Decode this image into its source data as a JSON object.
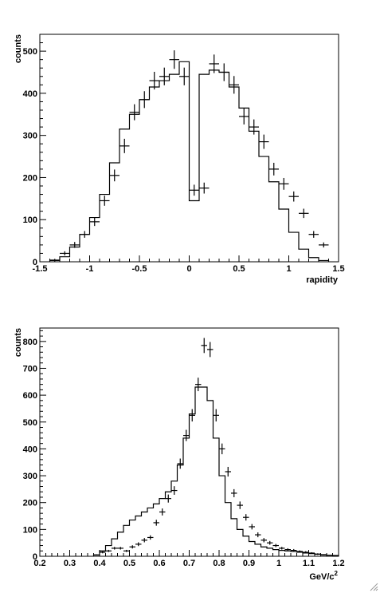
{
  "chart_data": [
    {
      "type": "histogram",
      "title": "",
      "xlabel": "rapidity",
      "ylabel": "counts",
      "xlim": [
        -1.5,
        1.5
      ],
      "ylim": [
        0,
        540
      ],
      "xticks": [
        -1.5,
        -1,
        -0.5,
        0,
        0.5,
        1,
        1.5
      ],
      "xtick_labels": [
        "-1.5",
        "-1",
        "-0.5",
        "0",
        "0.5",
        "1",
        "1.5"
      ],
      "yticks": [
        0,
        100,
        200,
        300,
        400,
        500
      ],
      "ytick_labels": [
        "0",
        "100",
        "200",
        "300",
        "400",
        "500"
      ],
      "bin_width": 0.1,
      "series": [
        {
          "kind": "step",
          "bin_low_edges": [
            -1.4,
            -1.3,
            -1.2,
            -1.1,
            -1.0,
            -0.9,
            -0.8,
            -0.7,
            -0.6,
            -0.5,
            -0.4,
            -0.3,
            -0.2,
            -0.1,
            0.0,
            0.1,
            0.2,
            0.3,
            0.4,
            0.5,
            0.6,
            0.7,
            0.8,
            0.9,
            1.0,
            1.1,
            1.2,
            1.3
          ],
          "values": [
            3,
            12,
            35,
            65,
            105,
            160,
            235,
            315,
            350,
            385,
            415,
            430,
            445,
            475,
            145,
            445,
            455,
            450,
            415,
            365,
            310,
            250,
            190,
            125,
            70,
            30,
            10,
            3
          ]
        },
        {
          "kind": "points_with_errors",
          "x": [
            -1.35,
            -1.25,
            -1.15,
            -1.05,
            -0.95,
            -0.85,
            -0.75,
            -0.65,
            -0.55,
            -0.45,
            -0.35,
            -0.25,
            -0.15,
            -0.05,
            0.05,
            0.15,
            0.25,
            0.35,
            0.45,
            0.55,
            0.65,
            0.75,
            0.85,
            0.95,
            1.05,
            1.15,
            1.25,
            1.35
          ],
          "y": [
            4,
            20,
            40,
            65,
            95,
            145,
            205,
            275,
            355,
            385,
            430,
            440,
            480,
            440,
            170,
            175,
            470,
            450,
            420,
            345,
            320,
            285,
            220,
            185,
            155,
            115,
            65,
            40
          ],
          "x_err": 0.05,
          "y_err": [
            3,
            5,
            7,
            8,
            10,
            12,
            14,
            17,
            19,
            20,
            21,
            21,
            22,
            21,
            13,
            13,
            22,
            21,
            21,
            19,
            18,
            17,
            15,
            14,
            12,
            11,
            8,
            6
          ]
        }
      ]
    },
    {
      "type": "histogram",
      "title": "",
      "xlabel": "GeV/c",
      "xlabel_superscript": "2",
      "ylabel": "counts",
      "xlim": [
        0.2,
        1.2
      ],
      "ylim": [
        0,
        850
      ],
      "xticks": [
        0.2,
        0.3,
        0.4,
        0.5,
        0.6,
        0.7,
        0.8,
        0.9,
        1.0,
        1.1,
        1.2
      ],
      "xtick_labels": [
        "0.2",
        "0.3",
        "0.4",
        "0.5",
        "0.6",
        "0.7",
        "0.8",
        "0.9",
        "1",
        "1.1",
        "1.2"
      ],
      "yticks": [
        0,
        100,
        200,
        300,
        400,
        500,
        600,
        700,
        800
      ],
      "ytick_labels": [
        "0",
        "100",
        "200",
        "300",
        "400",
        "500",
        "600",
        "700",
        "800"
      ],
      "bin_width": 0.02,
      "series": [
        {
          "kind": "step",
          "bin_low_edges": [
            0.38,
            0.4,
            0.42,
            0.44,
            0.46,
            0.48,
            0.5,
            0.52,
            0.54,
            0.56,
            0.58,
            0.6,
            0.62,
            0.64,
            0.66,
            0.68,
            0.7,
            0.72,
            0.74,
            0.76,
            0.78,
            0.8,
            0.82,
            0.84,
            0.86,
            0.88,
            0.9,
            0.92,
            0.94,
            0.96,
            0.98,
            1.0,
            1.02,
            1.04,
            1.06,
            1.08,
            1.1,
            1.12,
            1.14,
            1.16,
            1.18
          ],
          "values": [
            5,
            20,
            40,
            65,
            90,
            115,
            135,
            150,
            165,
            180,
            195,
            215,
            240,
            280,
            340,
            440,
            530,
            630,
            630,
            580,
            440,
            300,
            200,
            140,
            100,
            75,
            55,
            45,
            35,
            30,
            25,
            22,
            20,
            18,
            15,
            12,
            10,
            8,
            6,
            4,
            3
          ]
        },
        {
          "kind": "points_with_errors",
          "x": [
            0.39,
            0.41,
            0.43,
            0.45,
            0.47,
            0.49,
            0.51,
            0.53,
            0.55,
            0.57,
            0.59,
            0.61,
            0.63,
            0.65,
            0.67,
            0.69,
            0.71,
            0.73,
            0.75,
            0.77,
            0.79,
            0.81,
            0.83,
            0.85,
            0.87,
            0.89,
            0.91,
            0.93,
            0.95,
            0.97,
            0.99,
            1.01,
            1.03,
            1.05,
            1.07,
            1.09,
            1.11,
            1.13,
            1.15
          ],
          "y": [
            5,
            15,
            20,
            30,
            30,
            20,
            35,
            45,
            60,
            70,
            125,
            165,
            215,
            245,
            345,
            450,
            525,
            640,
            785,
            770,
            525,
            400,
            315,
            235,
            190,
            145,
            110,
            80,
            60,
            50,
            40,
            30,
            25,
            22,
            18,
            15,
            12,
            8,
            5
          ],
          "x_err": 0.01,
          "y_err": [
            2,
            4,
            4,
            5,
            5,
            4,
            6,
            7,
            8,
            8,
            11,
            13,
            15,
            16,
            19,
            21,
            23,
            25,
            28,
            28,
            23,
            20,
            18,
            15,
            14,
            12,
            10,
            9,
            8,
            7,
            6,
            5,
            5,
            5,
            4,
            4,
            3,
            3,
            2
          ]
        }
      ]
    }
  ]
}
